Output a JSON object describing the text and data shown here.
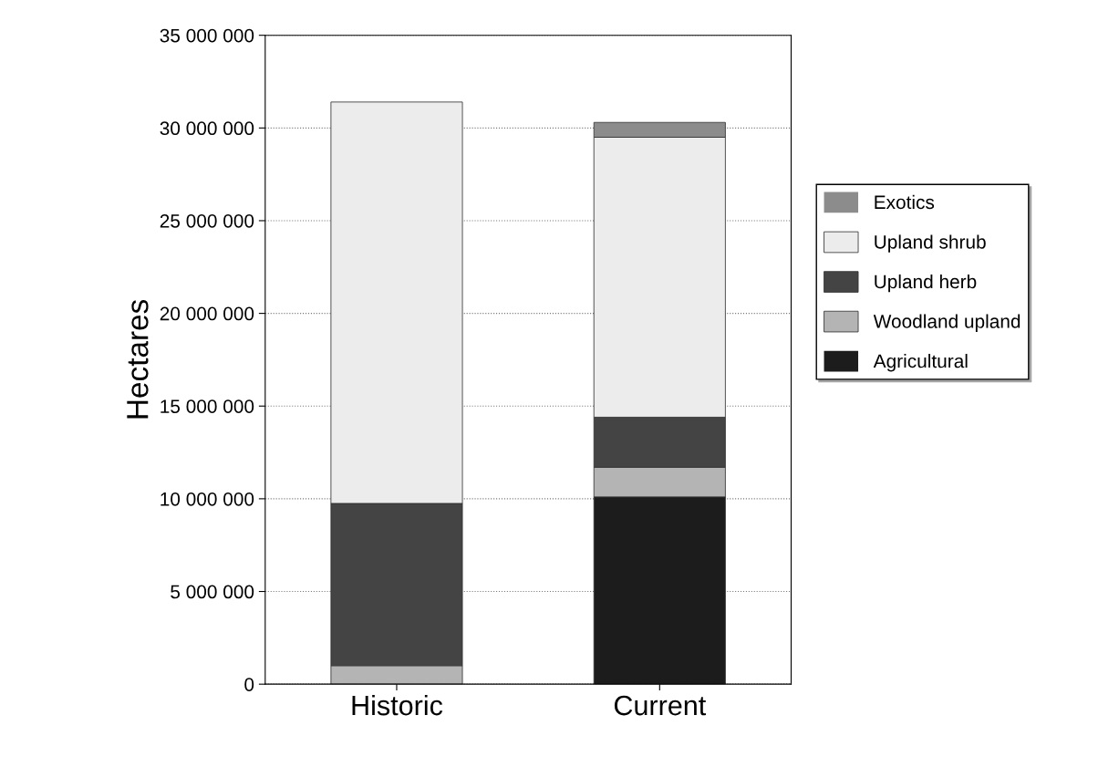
{
  "chart_data": {
    "type": "bar",
    "stacked": true,
    "ylabel": "Hectares",
    "categories": [
      "Historic",
      "Current"
    ],
    "series": [
      {
        "name": "Agricultural",
        "color": "#1c1c1c",
        "values": [
          0,
          10100000
        ]
      },
      {
        "name": "Woodland upland",
        "color": "#b4b4b4",
        "values": [
          1000000,
          1600000
        ]
      },
      {
        "name": "Upland herb",
        "color": "#444444",
        "values": [
          8750000,
          2700000
        ]
      },
      {
        "name": "Upland shrub",
        "color": "#ececec",
        "values": [
          21650000,
          15100000
        ]
      },
      {
        "name": "Exotics",
        "color": "#8c8c8c",
        "values": [
          0,
          800000
        ]
      }
    ],
    "ylim": [
      0,
      35000000
    ],
    "yticks": [
      0,
      {
        "value": 5000000,
        "label": "5 000 000"
      },
      {
        "value": 10000000,
        "label": "10 000 000"
      },
      {
        "value": 15000000,
        "label": "15 000 000"
      },
      {
        "value": 20000000,
        "label": "20 000 000"
      },
      {
        "value": 25000000,
        "label": "25 000 000"
      },
      {
        "value": 30000000,
        "label": "30 000 000"
      },
      {
        "value": 35000000,
        "label": "35 000 000"
      }
    ],
    "grid": "y",
    "legend": "right"
  }
}
